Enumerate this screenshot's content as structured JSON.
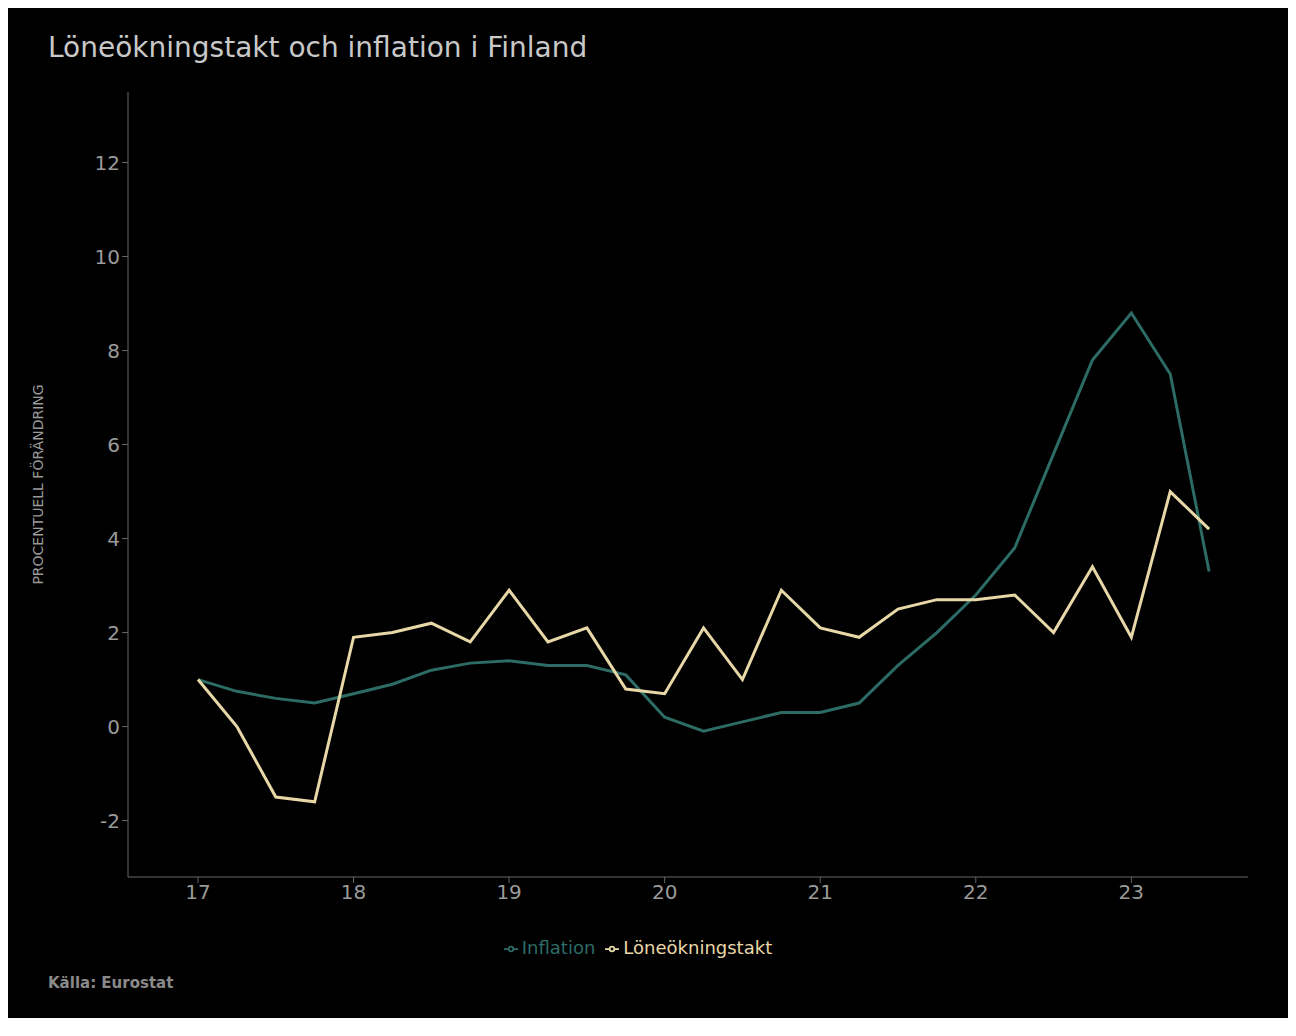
{
  "chart_data": {
    "type": "line",
    "title": "Löneökningstakt och inflation i Finland",
    "ylabel": "PROCENTUELL FÖRÄNDRING",
    "source": "Källa: Eurostat",
    "x": [
      17.0,
      17.25,
      17.5,
      17.75,
      18.0,
      18.25,
      18.5,
      18.75,
      19.0,
      19.25,
      19.5,
      19.75,
      20.0,
      20.25,
      20.5,
      20.75,
      21.0,
      21.25,
      21.5,
      21.75,
      22.0,
      22.25,
      22.5,
      22.75,
      23.0,
      23.25,
      23.5
    ],
    "series": [
      {
        "name": "Inflation",
        "color": "#2d6b65",
        "values": [
          1.0,
          0.75,
          0.6,
          0.5,
          0.7,
          0.9,
          1.2,
          1.35,
          1.4,
          1.3,
          1.3,
          1.1,
          0.2,
          -0.1,
          0.1,
          0.3,
          0.3,
          0.5,
          1.3,
          2.0,
          2.8,
          3.8,
          5.8,
          7.8,
          8.8,
          7.5,
          3.3
        ]
      },
      {
        "name": "Löneökningstakt",
        "color": "#e8d8a8",
        "values": [
          1.0,
          0.0,
          -1.5,
          -1.6,
          1.9,
          2.0,
          2.2,
          1.8,
          2.9,
          1.8,
          2.1,
          0.8,
          0.7,
          2.1,
          1.0,
          2.9,
          2.1,
          1.9,
          2.5,
          2.7,
          2.7,
          2.8,
          2.0,
          3.4,
          1.9,
          5.0,
          4.2
        ]
      }
    ],
    "xlim": [
      16.55,
      23.75
    ],
    "ylim": [
      -3.2,
      13.5
    ],
    "xticks": [
      17,
      18,
      19,
      20,
      21,
      22,
      23
    ],
    "yticks": [
      -2,
      0,
      2,
      4,
      6,
      8,
      10,
      12
    ],
    "grid": false,
    "legend": "bottom"
  }
}
